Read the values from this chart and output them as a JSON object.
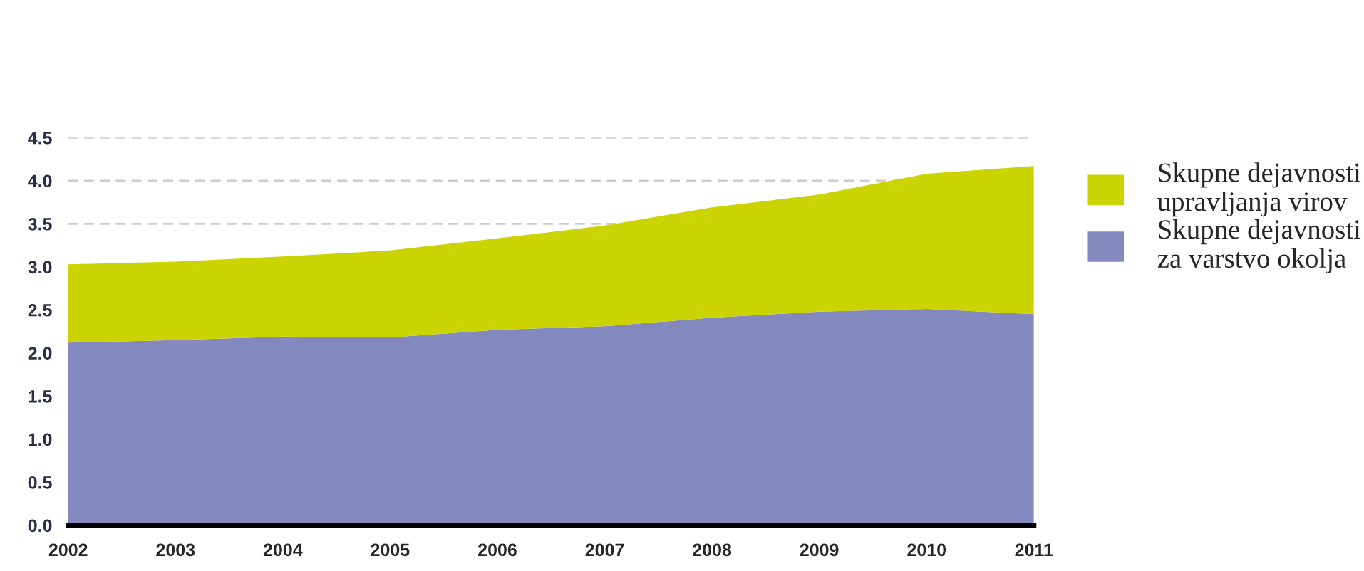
{
  "chart_data": {
    "type": "area",
    "stacked": true,
    "x": [
      "2002",
      "2003",
      "2004",
      "2005",
      "2006",
      "2007",
      "2008",
      "2009",
      "2010",
      "2011"
    ],
    "series": [
      {
        "name": "Skupne dejavnosti za varstvo okolja",
        "color": "#8389be",
        "values": [
          2.12,
          2.15,
          2.19,
          2.18,
          2.27,
          2.31,
          2.41,
          2.48,
          2.51,
          2.45
        ]
      },
      {
        "name": "Skupne dejavnosti upravljanja virov",
        "color": "#cbd300",
        "values": [
          0.91,
          0.91,
          0.93,
          1.01,
          1.06,
          1.17,
          1.28,
          1.36,
          1.57,
          1.72
        ]
      }
    ],
    "xlim": [
      "2002",
      "2011"
    ],
    "xticks": [
      "2002",
      "2003",
      "2004",
      "2005",
      "2006",
      "2007",
      "2008",
      "2009",
      "2010",
      "2011"
    ],
    "ylim": [
      0,
      4.5
    ],
    "yticks": [
      {
        "value": 0,
        "label": "0.0"
      },
      0.5,
      {
        "value": 1,
        "label": "1.0"
      },
      1.5,
      {
        "value": 2,
        "label": "2.0"
      },
      2.5,
      {
        "value": 3,
        "label": "3.0"
      },
      3.5,
      {
        "value": 4,
        "label": "4.0"
      },
      4.5
    ],
    "grid": "y",
    "legend": "right",
    "line_style": "dashed"
  }
}
